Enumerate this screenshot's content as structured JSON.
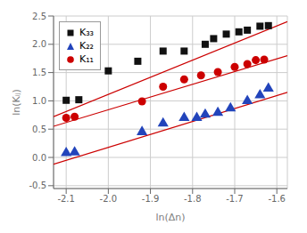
{
  "chart_data": {
    "type": "scatter",
    "title": "",
    "xlabel": "ln(Δn)",
    "ylabel": "ln(Kᵢⱼ)",
    "xlim": [
      -2.13,
      -1.575
    ],
    "ylim": [
      -0.55,
      2.5
    ],
    "xticks": [
      -2.1,
      {
        "value": -2.0,
        "label": "-2.0"
      },
      -1.9,
      -1.8,
      -1.7,
      -1.6
    ],
    "yticks": [
      -0.5,
      {
        "value": 0.0,
        "label": "0.0"
      },
      0.5,
      {
        "value": 1.0,
        "label": "1.0"
      },
      1.5,
      {
        "value": 2.0,
        "label": "2.0"
      },
      2.5
    ],
    "grid": true,
    "legend": "upper left",
    "series": [
      {
        "type": "line",
        "color": "#cc0000",
        "x": [
          -2.13,
          -1.575
        ],
        "values": [
          0.72,
          2.4
        ]
      },
      {
        "type": "line",
        "color": "#cc0000",
        "x": [
          -2.13,
          -1.575
        ],
        "values": [
          0.55,
          1.8
        ]
      },
      {
        "type": "line",
        "color": "#cc0000",
        "x": [
          -2.13,
          -1.575
        ],
        "values": [
          -0.12,
          1.15
        ]
      },
      {
        "type": "scatter",
        "name": "K₃₃",
        "color": "#111111",
        "marker": "square",
        "x": [
          -2.1,
          -2.07,
          -2.0,
          -1.93,
          -1.87,
          -1.82,
          -1.77,
          -1.75,
          -1.72,
          -1.69,
          -1.67,
          -1.64,
          -1.62
        ],
        "values": [
          1.01,
          1.02,
          1.53,
          1.7,
          1.88,
          1.88,
          2.0,
          2.1,
          2.18,
          2.22,
          2.25,
          2.32,
          2.33
        ]
      },
      {
        "type": "scatter",
        "name": "K₂₂",
        "color": "#2244bb",
        "marker": "triangle",
        "x": [
          -2.1,
          -2.08,
          -1.92,
          -1.87,
          -1.82,
          -1.79,
          -1.77,
          -1.74,
          -1.71,
          -1.67,
          -1.64,
          -1.62
        ],
        "values": [
          0.08,
          0.09,
          0.45,
          0.6,
          0.7,
          0.7,
          0.76,
          0.79,
          0.87,
          1.0,
          1.1,
          1.22
        ]
      },
      {
        "type": "scatter",
        "name": "K₁₁",
        "color": "#cc0000",
        "marker": "circle",
        "x": [
          -2.1,
          -2.08,
          -1.92,
          -1.87,
          -1.82,
          -1.78,
          -1.74,
          -1.7,
          -1.67,
          -1.65,
          -1.63
        ],
        "values": [
          0.7,
          0.72,
          0.99,
          1.25,
          1.38,
          1.45,
          1.51,
          1.6,
          1.65,
          1.72,
          1.73
        ]
      }
    ]
  }
}
